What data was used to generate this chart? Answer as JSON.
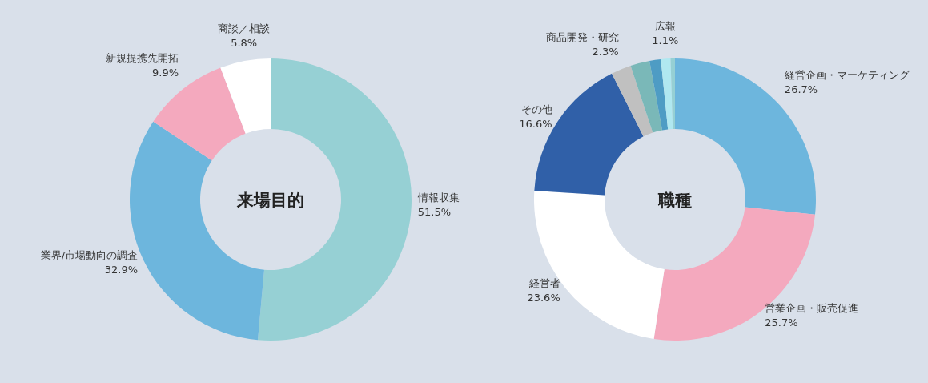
{
  "chart_data": [
    {
      "type": "donut",
      "title": "来場目的",
      "categories": [
        "情報収集",
        "業界/市場動向の調査",
        "新規提携先開拓",
        "商談／相談"
      ],
      "values": [
        51.5,
        32.9,
        9.9,
        5.8
      ],
      "colors": [
        "#96d0d4",
        "#6db6dd",
        "#f4a9be",
        "#ffffff"
      ],
      "value_labels": [
        "51.5%",
        "32.9%",
        "9.9%",
        "5.8%"
      ]
    },
    {
      "type": "donut",
      "title": "職種",
      "categories": [
        "経営企画・マーケティング",
        "営業企画・販売促進",
        "経営者",
        "その他",
        "商品開発・研究",
        null,
        null,
        "広報",
        null
      ],
      "values": [
        26.7,
        25.7,
        23.6,
        16.6,
        2.3,
        2.2,
        1.3,
        1.1,
        0.5
      ],
      "colors": [
        "#6db6dd",
        "#f4a9be",
        "#ffffff",
        "#3060a8",
        "#c0c0c0",
        "#7ab8b8",
        "#4e9cc4",
        "#b0e8f0",
        "#96d0d4"
      ],
      "value_labels": [
        "26.7%",
        "25.7%",
        "23.6%",
        "16.6%",
        "2.3%",
        null,
        null,
        "1.1%",
        null
      ]
    }
  ]
}
